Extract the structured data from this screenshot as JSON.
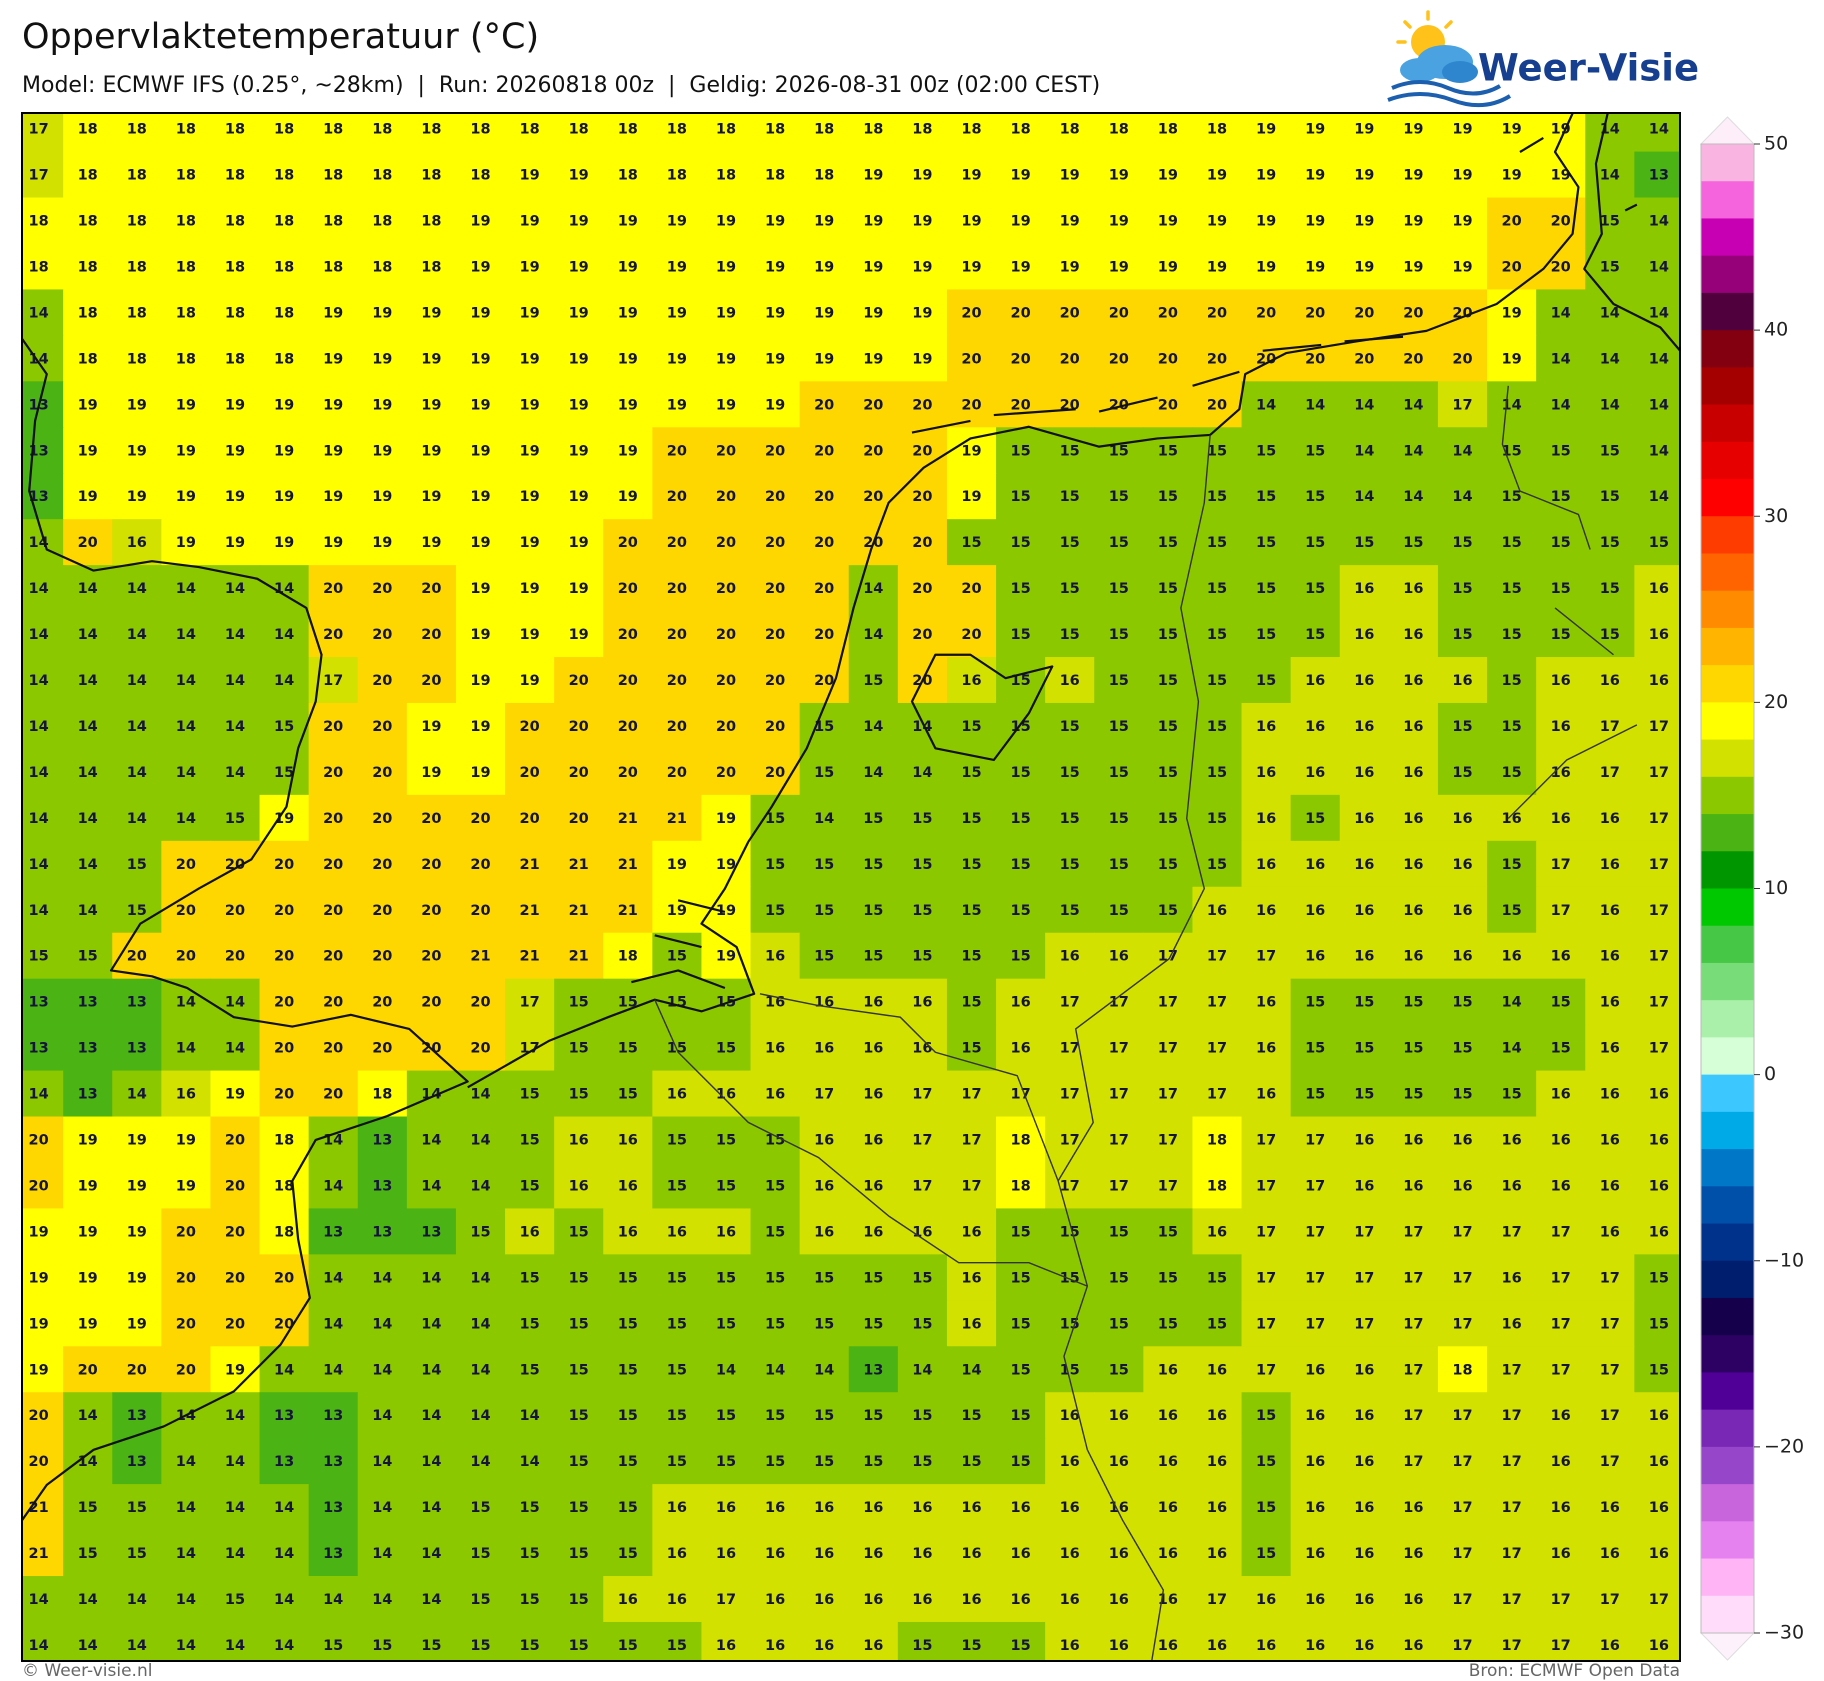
{
  "chart_data": {
    "type": "heatmap",
    "title": "Oppervlaktetemperatuur (°C)",
    "subtitle": "Model: ECMWF IFS (0.25°, ~28km)  |  Run: 20260818 00z  |  Geldig: 2026-08-31 00z (02:00 CEST)",
    "values": [
      [
        17,
        18,
        18,
        18,
        18,
        18,
        18,
        18,
        18,
        18,
        18,
        18,
        18,
        18,
        18,
        18,
        18,
        18,
        18,
        18,
        18,
        18,
        18,
        18,
        18,
        19,
        19,
        19,
        19,
        19,
        19,
        19,
        14,
        14
      ],
      [
        17,
        18,
        18,
        18,
        18,
        18,
        18,
        18,
        18,
        18,
        19,
        19,
        18,
        18,
        18,
        18,
        18,
        19,
        19,
        19,
        19,
        19,
        19,
        19,
        19,
        19,
        19,
        19,
        19,
        19,
        19,
        19,
        14,
        13
      ],
      [
        18,
        18,
        18,
        18,
        18,
        18,
        18,
        18,
        18,
        19,
        19,
        19,
        19,
        19,
        19,
        19,
        19,
        19,
        19,
        19,
        19,
        19,
        19,
        19,
        19,
        19,
        19,
        19,
        19,
        19,
        20,
        20,
        15,
        14
      ],
      [
        18,
        18,
        18,
        18,
        18,
        18,
        18,
        18,
        18,
        19,
        19,
        19,
        19,
        19,
        19,
        19,
        19,
        19,
        19,
        19,
        19,
        19,
        19,
        19,
        19,
        19,
        19,
        19,
        19,
        19,
        20,
        20,
        15,
        14
      ],
      [
        14,
        18,
        18,
        18,
        18,
        18,
        19,
        19,
        19,
        19,
        19,
        19,
        19,
        19,
        19,
        19,
        19,
        19,
        19,
        20,
        20,
        20,
        20,
        20,
        20,
        20,
        20,
        20,
        20,
        20,
        19,
        14,
        14,
        14
      ],
      [
        14,
        18,
        18,
        18,
        18,
        18,
        19,
        19,
        19,
        19,
        19,
        19,
        19,
        19,
        19,
        19,
        19,
        19,
        19,
        20,
        20,
        20,
        20,
        20,
        20,
        20,
        20,
        20,
        20,
        20,
        19,
        14,
        14,
        14
      ],
      [
        13,
        19,
        19,
        19,
        19,
        19,
        19,
        19,
        19,
        19,
        19,
        19,
        19,
        19,
        19,
        19,
        20,
        20,
        20,
        20,
        20,
        20,
        20,
        20,
        20,
        14,
        14,
        14,
        14,
        17,
        14,
        14,
        14,
        14
      ],
      [
        13,
        19,
        19,
        19,
        19,
        19,
        19,
        19,
        19,
        19,
        19,
        19,
        19,
        20,
        20,
        20,
        20,
        20,
        20,
        19,
        15,
        15,
        15,
        15,
        15,
        15,
        15,
        14,
        14,
        14,
        15,
        15,
        15,
        14
      ],
      [
        13,
        19,
        19,
        19,
        19,
        19,
        19,
        19,
        19,
        19,
        19,
        19,
        19,
        20,
        20,
        20,
        20,
        20,
        20,
        19,
        15,
        15,
        15,
        15,
        15,
        15,
        15,
        14,
        14,
        14,
        15,
        15,
        15,
        14
      ],
      [
        14,
        20,
        16,
        19,
        19,
        19,
        19,
        19,
        19,
        19,
        19,
        19,
        20,
        20,
        20,
        20,
        20,
        20,
        20,
        15,
        15,
        15,
        15,
        15,
        15,
        15,
        15,
        15,
        15,
        15,
        15,
        15,
        15,
        15
      ],
      [
        14,
        14,
        14,
        14,
        14,
        14,
        20,
        20,
        20,
        19,
        19,
        19,
        20,
        20,
        20,
        20,
        20,
        14,
        20,
        20,
        15,
        15,
        15,
        15,
        15,
        15,
        15,
        16,
        16,
        15,
        15,
        15,
        15,
        16
      ],
      [
        14,
        14,
        14,
        14,
        14,
        14,
        20,
        20,
        20,
        19,
        19,
        19,
        20,
        20,
        20,
        20,
        20,
        14,
        20,
        20,
        15,
        15,
        15,
        15,
        15,
        15,
        15,
        16,
        16,
        15,
        15,
        15,
        15,
        16
      ],
      [
        14,
        14,
        14,
        14,
        14,
        14,
        17,
        20,
        20,
        19,
        19,
        20,
        20,
        20,
        20,
        20,
        20,
        15,
        20,
        16,
        15,
        16,
        15,
        15,
        15,
        15,
        16,
        16,
        16,
        16,
        15,
        16,
        16,
        16
      ],
      [
        14,
        14,
        14,
        14,
        14,
        15,
        20,
        20,
        19,
        19,
        20,
        20,
        20,
        20,
        20,
        20,
        15,
        14,
        14,
        15,
        15,
        15,
        15,
        15,
        15,
        16,
        16,
        16,
        16,
        15,
        15,
        16,
        17,
        17
      ],
      [
        14,
        14,
        14,
        14,
        14,
        15,
        20,
        20,
        19,
        19,
        20,
        20,
        20,
        20,
        20,
        20,
        15,
        14,
        14,
        15,
        15,
        15,
        15,
        15,
        15,
        16,
        16,
        16,
        16,
        15,
        15,
        16,
        17,
        17
      ],
      [
        14,
        14,
        14,
        14,
        15,
        19,
        20,
        20,
        20,
        20,
        20,
        20,
        21,
        21,
        19,
        15,
        14,
        15,
        15,
        15,
        15,
        15,
        15,
        15,
        15,
        16,
        15,
        16,
        16,
        16,
        16,
        16,
        16,
        17
      ],
      [
        14,
        14,
        15,
        20,
        20,
        20,
        20,
        20,
        20,
        20,
        21,
        21,
        21,
        19,
        19,
        15,
        15,
        15,
        15,
        15,
        15,
        15,
        15,
        15,
        15,
        16,
        16,
        16,
        16,
        16,
        15,
        17,
        16,
        17
      ],
      [
        14,
        14,
        15,
        20,
        20,
        20,
        20,
        20,
        20,
        20,
        21,
        21,
        21,
        19,
        19,
        15,
        15,
        15,
        15,
        15,
        15,
        15,
        15,
        15,
        16,
        16,
        16,
        16,
        16,
        16,
        15,
        17,
        16,
        17
      ],
      [
        15,
        15,
        20,
        20,
        20,
        20,
        20,
        20,
        20,
        21,
        21,
        21,
        18,
        15,
        19,
        16,
        15,
        15,
        15,
        15,
        15,
        16,
        16,
        17,
        17,
        17,
        16,
        16,
        16,
        16,
        16,
        16,
        16,
        17
      ],
      [
        13,
        13,
        13,
        14,
        14,
        20,
        20,
        20,
        20,
        20,
        17,
        15,
        15,
        15,
        15,
        16,
        16,
        16,
        16,
        15,
        16,
        17,
        17,
        17,
        17,
        16,
        15,
        15,
        15,
        15,
        14,
        15,
        16,
        17
      ],
      [
        13,
        13,
        13,
        14,
        14,
        20,
        20,
        20,
        20,
        20,
        17,
        15,
        15,
        15,
        15,
        16,
        16,
        16,
        16,
        15,
        16,
        17,
        17,
        17,
        17,
        16,
        15,
        15,
        15,
        15,
        14,
        15,
        16,
        17
      ],
      [
        14,
        13,
        14,
        16,
        19,
        20,
        20,
        18,
        14,
        14,
        15,
        15,
        15,
        16,
        16,
        16,
        17,
        16,
        17,
        17,
        17,
        17,
        17,
        17,
        17,
        16,
        15,
        15,
        15,
        15,
        15,
        16,
        16,
        16
      ],
      [
        20,
        19,
        19,
        19,
        20,
        18,
        14,
        13,
        14,
        14,
        15,
        16,
        16,
        15,
        15,
        15,
        16,
        16,
        17,
        17,
        18,
        17,
        17,
        17,
        18,
        17,
        17,
        16,
        16,
        16,
        16,
        16,
        16,
        16
      ],
      [
        20,
        19,
        19,
        19,
        20,
        18,
        14,
        13,
        14,
        14,
        15,
        16,
        16,
        15,
        15,
        15,
        16,
        16,
        17,
        17,
        18,
        17,
        17,
        17,
        18,
        17,
        17,
        16,
        16,
        16,
        16,
        16,
        16,
        16
      ],
      [
        19,
        19,
        19,
        20,
        20,
        18,
        13,
        13,
        13,
        15,
        16,
        15,
        16,
        16,
        16,
        15,
        16,
        16,
        16,
        16,
        15,
        15,
        15,
        15,
        16,
        17,
        17,
        17,
        17,
        17,
        17,
        17,
        16,
        16
      ],
      [
        19,
        19,
        19,
        20,
        20,
        20,
        14,
        14,
        14,
        14,
        15,
        15,
        15,
        15,
        15,
        15,
        15,
        15,
        15,
        16,
        15,
        15,
        15,
        15,
        15,
        17,
        17,
        17,
        17,
        17,
        16,
        17,
        17,
        15
      ],
      [
        19,
        19,
        19,
        20,
        20,
        20,
        14,
        14,
        14,
        14,
        15,
        15,
        15,
        15,
        15,
        15,
        15,
        15,
        15,
        16,
        15,
        15,
        15,
        15,
        15,
        17,
        17,
        17,
        17,
        17,
        16,
        17,
        17,
        15
      ],
      [
        19,
        20,
        20,
        20,
        19,
        14,
        14,
        14,
        14,
        14,
        15,
        15,
        15,
        15,
        14,
        14,
        14,
        13,
        14,
        14,
        15,
        15,
        15,
        16,
        16,
        17,
        16,
        16,
        17,
        18,
        17,
        17,
        17,
        15
      ],
      [
        20,
        14,
        13,
        14,
        14,
        13,
        13,
        14,
        14,
        14,
        14,
        15,
        15,
        15,
        15,
        15,
        15,
        15,
        15,
        15,
        15,
        16,
        16,
        16,
        16,
        15,
        16,
        16,
        17,
        17,
        17,
        16,
        17,
        16
      ],
      [
        20,
        14,
        13,
        14,
        14,
        13,
        13,
        14,
        14,
        14,
        14,
        15,
        15,
        15,
        15,
        15,
        15,
        15,
        15,
        15,
        15,
        16,
        16,
        16,
        16,
        15,
        16,
        16,
        17,
        17,
        17,
        16,
        17,
        16
      ],
      [
        21,
        15,
        15,
        14,
        14,
        14,
        13,
        14,
        14,
        15,
        15,
        15,
        15,
        16,
        16,
        16,
        16,
        16,
        16,
        16,
        16,
        16,
        16,
        16,
        16,
        15,
        16,
        16,
        16,
        17,
        17,
        16,
        16,
        16
      ],
      [
        21,
        15,
        15,
        14,
        14,
        14,
        13,
        14,
        14,
        15,
        15,
        15,
        15,
        16,
        16,
        16,
        16,
        16,
        16,
        16,
        16,
        16,
        16,
        16,
        16,
        15,
        16,
        16,
        16,
        17,
        17,
        16,
        16,
        16
      ],
      [
        14,
        14,
        14,
        14,
        15,
        14,
        14,
        14,
        14,
        15,
        15,
        15,
        16,
        16,
        17,
        16,
        16,
        16,
        16,
        16,
        16,
        16,
        16,
        16,
        17,
        16,
        16,
        16,
        16,
        17,
        17,
        17,
        17,
        17
      ],
      [
        14,
        14,
        14,
        14,
        14,
        14,
        15,
        15,
        15,
        15,
        15,
        15,
        15,
        15,
        16,
        16,
        16,
        16,
        15,
        15,
        15,
        16,
        16,
        16,
        16,
        16,
        16,
        16,
        16,
        17,
        17,
        17,
        16,
        16
      ]
    ],
    "clim": [
      -30,
      50
    ],
    "cticks": [
      50,
      40,
      30,
      20,
      10,
      0,
      {
        "value": -10,
        "label": "−10"
      },
      {
        "value": -20,
        "label": "−20"
      },
      {
        "value": -30,
        "label": "−30"
      }
    ],
    "colors": [
      "#f9b4e1",
      "#f564dc",
      "#c800b4",
      "#960078",
      "#50003c",
      "#82000f",
      "#a50000",
      "#c80000",
      "#e60000",
      "#ff0000",
      "#ff3c00",
      "#ff6400",
      "#ff8c00",
      "#ffb400",
      "#ffd700",
      "#ffff00",
      "#d2e100",
      "#8cc800",
      "#4bb414",
      "#009600",
      "#00c800",
      "#46c846",
      "#78dc78",
      "#aaf0aa",
      "#d7ffd7",
      "#3cc8ff",
      "#00aae6",
      "#0078c8",
      "#0050aa",
      "#00328c",
      "#001e6e",
      "#14004b",
      "#2d0064",
      "#500096",
      "#7828b4",
      "#9646c8",
      "#c864dc",
      "#e682f0",
      "#ffb4f5",
      "#ffdcfa"
    ]
  },
  "logo": "Weer-Visie",
  "footer": {
    "copyright": "© Weer-visie.nl",
    "source": "Bron: ECMWF Open Data"
  }
}
